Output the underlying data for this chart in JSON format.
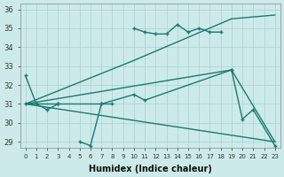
{
  "xlabel": "Humidex (Indice chaleur)",
  "bg_color": "#cdeaea",
  "grid_color": "#b0d4d4",
  "line_color": "#1a7a6e",
  "xlim": [
    -0.5,
    23.5
  ],
  "ylim": [
    28.7,
    36.3
  ],
  "yticks": [
    29,
    30,
    31,
    32,
    33,
    34,
    35,
    36
  ],
  "xticks": [
    0,
    1,
    2,
    3,
    4,
    5,
    6,
    7,
    8,
    9,
    10,
    11,
    12,
    13,
    14,
    15,
    16,
    17,
    18,
    19,
    20,
    21,
    22,
    23
  ],
  "seg_zigzag_a": {
    "x": [
      0,
      1,
      2,
      3
    ],
    "y": [
      32.5,
      31.0,
      30.7,
      31.0
    ]
  },
  "seg_zigzag_b": {
    "x": [
      5,
      6,
      7,
      8
    ],
    "y": [
      29.0,
      28.8,
      31.0,
      31.0
    ]
  },
  "seg_zigzag_c": {
    "x": [
      10,
      11,
      12,
      13,
      14,
      15,
      16,
      17,
      18
    ],
    "y": [
      35.0,
      34.8,
      34.7,
      34.7,
      35.2,
      34.8,
      35.0,
      34.8,
      34.8
    ]
  },
  "line_rise_top": {
    "x": [
      0,
      10,
      19,
      23
    ],
    "y": [
      31.0,
      33.3,
      35.5,
      35.7
    ]
  },
  "line_rise_mid": {
    "x": [
      0,
      3,
      7,
      10,
      11,
      19,
      20,
      21,
      23
    ],
    "y": [
      31.0,
      31.0,
      31.0,
      31.5,
      31.2,
      32.8,
      30.2,
      30.7,
      28.8
    ]
  },
  "line_flat_desc": {
    "x": [
      0,
      19,
      23
    ],
    "y": [
      31.0,
      32.8,
      29.0
    ]
  },
  "line_long_desc": {
    "x": [
      0,
      23
    ],
    "y": [
      31.0,
      29.0
    ]
  }
}
